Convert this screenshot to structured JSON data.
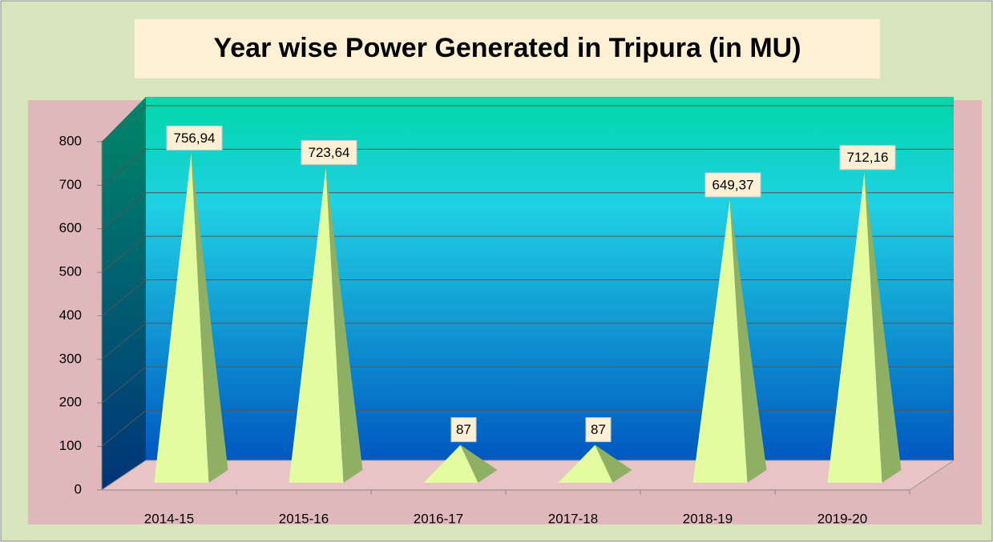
{
  "chart_data": {
    "type": "pyramid",
    "title": "Year wise Power Generated in Tripura (in MU)",
    "categories": [
      "2014-15",
      "2015-16",
      "2016-17",
      "2017-18",
      "2018-19",
      "2019-20"
    ],
    "values": [
      756.94,
      723.64,
      87,
      87,
      649.37,
      712.16
    ],
    "value_labels": [
      "756,94",
      "723,64",
      "87",
      "87",
      "649,37",
      "712,16"
    ],
    "color": "#e4fca0",
    "ylim": [
      0,
      800
    ],
    "yticks": [
      0,
      100,
      200,
      300,
      400,
      500,
      600,
      700,
      800
    ],
    "grid": true
  }
}
